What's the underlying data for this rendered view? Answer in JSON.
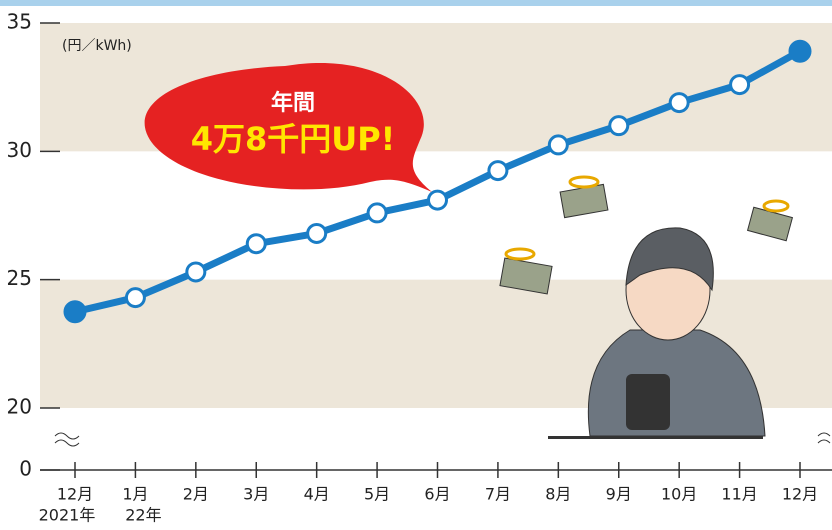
{
  "chart_data": {
    "type": "line",
    "unit_label": "(円／kWh)",
    "categories": [
      "12月",
      "1月",
      "2月",
      "3月",
      "4月",
      "5月",
      "6月",
      "7月",
      "8月",
      "9月",
      "10月",
      "11月",
      "12月"
    ],
    "year_labels": [
      "2021年",
      "22年"
    ],
    "series": [
      {
        "color": "#1a7dc6",
        "values": [
          23.75,
          24.3,
          25.3,
          26.4,
          26.8,
          27.6,
          28.1,
          29.25,
          30.25,
          31.0,
          31.9,
          32.6,
          33.9
        ]
      }
    ],
    "ylim": [
      0,
      35
    ],
    "yticks": [
      0,
      20,
      25,
      30,
      35
    ],
    "axis_break": true,
    "band_color": "#ede6d9",
    "marker_fill": "#ffffff",
    "highlight_ends": true,
    "callout": {
      "line1": "年間",
      "line2": "4万8千円UP!"
    }
  }
}
